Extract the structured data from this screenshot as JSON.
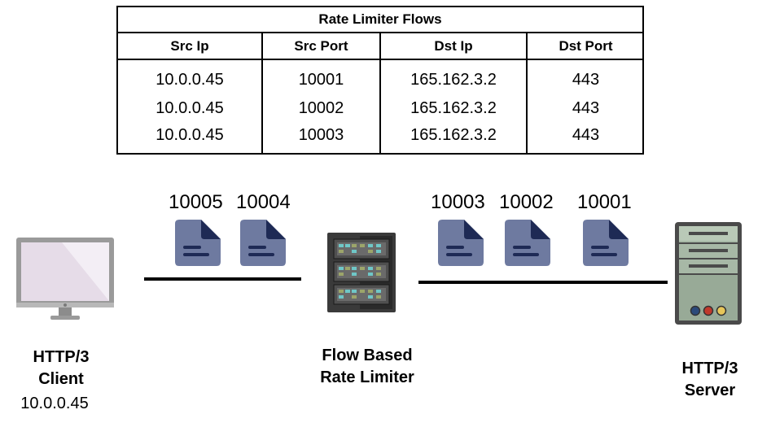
{
  "table": {
    "title": "Rate Limiter Flows",
    "headers": [
      "Src Ip",
      "Src Port",
      "Dst Ip",
      "Dst Port"
    ],
    "rows": [
      [
        "10.0.0.45",
        "10001",
        "165.162.3.2",
        "443"
      ],
      [
        "10.0.0.45",
        "10002",
        "165.162.3.2",
        "443"
      ],
      [
        "10.0.0.45",
        "10003",
        "165.162.3.2",
        "443"
      ]
    ]
  },
  "client": {
    "line1": "HTTP/3",
    "line2": "Client",
    "ip": "10.0.0.45"
  },
  "limiter": {
    "line1": "Flow Based",
    "line2": "Rate Limiter"
  },
  "server": {
    "line1": "HTTP/3",
    "line2": "Server"
  },
  "left_packets": [
    {
      "port": "10005",
      "icon": "document-icon"
    },
    {
      "port": "10004",
      "icon": "document-icon"
    }
  ],
  "right_packets": [
    {
      "port": "10003",
      "icon": "document-icon"
    },
    {
      "port": "10002",
      "icon": "document-icon"
    },
    {
      "port": "10001",
      "icon": "document-icon"
    }
  ],
  "colors": {
    "packet_body": "#6e7aa0",
    "packet_fold": "#1e2a55",
    "monitor_screen": "#e6dce8",
    "server_body": "#a7b8a6",
    "server_led_colors": [
      "#2b4a7a",
      "#c0392b",
      "#e7c65a"
    ]
  }
}
